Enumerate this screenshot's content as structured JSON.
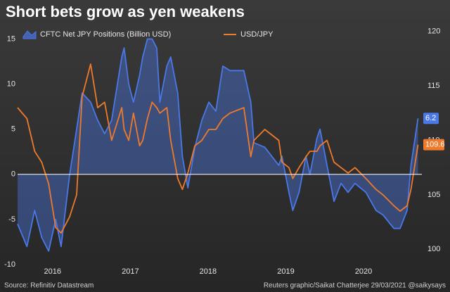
{
  "chart_data": {
    "type": "line",
    "title": "Short bets grow as yen weakens",
    "source": "Source: Refinitiv Datastream",
    "credit": "Reuters graphic/Saikat Chatterjee 29/03/2021 @saikysays",
    "x": [
      2016.05,
      2016.17,
      2016.27,
      2016.36,
      2016.45,
      2016.54,
      2016.61,
      2016.72,
      2016.81,
      2016.88,
      2016.99,
      2017.08,
      2017.17,
      2017.26,
      2017.39,
      2017.42,
      2017.48,
      2017.54,
      2017.62,
      2017.66,
      2017.72,
      2017.78,
      2017.84,
      2017.88,
      2017.97,
      2018.02,
      2018.11,
      2018.17,
      2018.24,
      2018.33,
      2018.42,
      2018.51,
      2018.6,
      2018.69,
      2018.78,
      2018.96,
      2019.05,
      2019.09,
      2019.23,
      2019.41,
      2019.45,
      2019.54,
      2019.59,
      2019.67,
      2019.76,
      2019.81,
      2019.9,
      2019.94,
      2020.03,
      2020.12,
      2020.21,
      2020.3,
      2020.39,
      2020.53,
      2020.66,
      2020.75,
      2020.89,
      2020.97,
      2021.06,
      2021.11,
      2021.2
    ],
    "series": [
      {
        "name": "CFTC Net JPY Positions (Billion USD)",
        "color": "#4a78e8",
        "axis": "y",
        "area": true,
        "values": [
          -5.5,
          -8,
          -4,
          -7,
          -8.5,
          -5,
          -8,
          0,
          5,
          9,
          8,
          6,
          4.5,
          6,
          13,
          14,
          10,
          8,
          11,
          13,
          15,
          15,
          14,
          8,
          12,
          13,
          9,
          2,
          -1.5,
          3,
          6,
          8,
          7,
          12,
          11.5,
          11.5,
          8,
          3.5,
          3,
          1,
          2,
          -2,
          -4,
          -2,
          2,
          0,
          4,
          5,
          1,
          -3,
          -1,
          -2,
          -1,
          -2,
          -4,
          -4.5,
          -6,
          -6,
          -4,
          1,
          6.2
        ]
      },
      {
        "name": "USD/JPY",
        "color": "#ee7a2c",
        "axis": "y2",
        "values": [
          113,
          112,
          109,
          108,
          106,
          102,
          101.5,
          103,
          105,
          114,
          117,
          113,
          113.5,
          110,
          113,
          111,
          110,
          112.5,
          109.5,
          110,
          112,
          113.5,
          113,
          112.5,
          113,
          110,
          106.5,
          105.5,
          107,
          109.5,
          110,
          111,
          111,
          112,
          112.5,
          113,
          108.5,
          110,
          111,
          110,
          108,
          107.5,
          106.5,
          107.5,
          108.5,
          109,
          109,
          109.5,
          110,
          108,
          107.5,
          107,
          107.5,
          106.5,
          105.5,
          105,
          104,
          103.5,
          104,
          105.5,
          109.6
        ]
      }
    ],
    "xlim": [
      2016.05,
      2021.25
    ],
    "xticks": [
      {
        "value": 2016.5,
        "label": "2016"
      },
      {
        "value": 2017.5,
        "label": "2017"
      },
      {
        "value": 2018.5,
        "label": "2018"
      },
      {
        "value": 2019.5,
        "label": "2019"
      },
      {
        "value": 2020.5,
        "label": "2020"
      }
    ],
    "ylim": [
      -10,
      16.2
    ],
    "yticks": [
      -10,
      -5,
      0,
      5,
      10,
      15
    ],
    "y2lim": [
      98.6,
      120.3
    ],
    "y2ticks": [
      100,
      105,
      110,
      115,
      120
    ],
    "zero_line": true,
    "legend": "top"
  }
}
